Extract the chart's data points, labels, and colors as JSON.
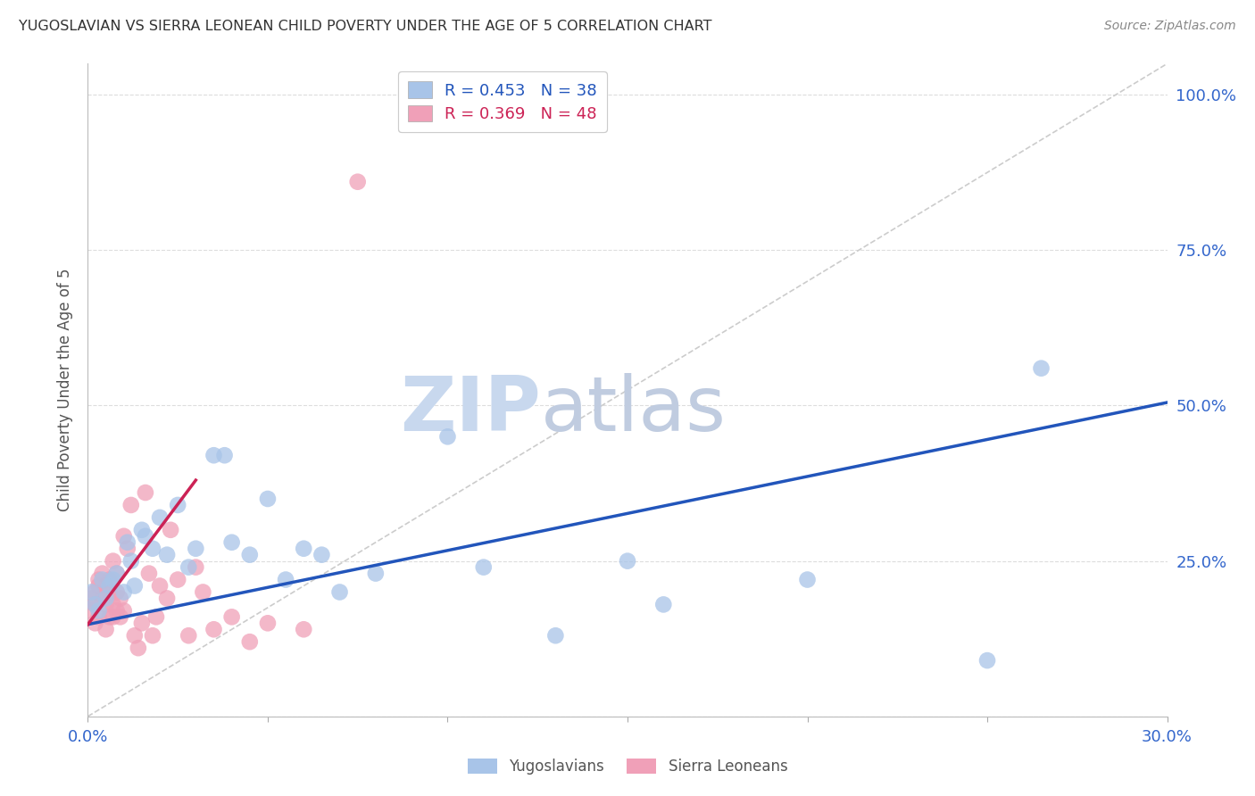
{
  "title": "YUGOSLAVIAN VS SIERRA LEONEAN CHILD POVERTY UNDER THE AGE OF 5 CORRELATION CHART",
  "source": "Source: ZipAtlas.com",
  "ylabel_label": "Child Poverty Under the Age of 5",
  "xlim": [
    0.0,
    0.3
  ],
  "ylim": [
    0.0,
    1.05
  ],
  "blue_R": 0.453,
  "blue_N": 38,
  "pink_R": 0.369,
  "pink_N": 48,
  "blue_color": "#a8c4e8",
  "pink_color": "#f0a0b8",
  "blue_line_color": "#2255bb",
  "pink_line_color": "#cc2255",
  "diagonal_color": "#cccccc",
  "watermark_zip_color": "#c8d8ee",
  "watermark_atlas_color": "#c0cce0",
  "background_color": "#ffffff",
  "grid_color": "#dddddd",
  "title_color": "#333333",
  "axis_label_color": "#555555",
  "tick_label_color": "#3366cc",
  "blue_scatter_x": [
    0.001,
    0.002,
    0.003,
    0.004,
    0.005,
    0.006,
    0.007,
    0.008,
    0.01,
    0.011,
    0.012,
    0.013,
    0.015,
    0.016,
    0.018,
    0.02,
    0.022,
    0.025,
    0.028,
    0.03,
    0.035,
    0.038,
    0.04,
    0.045,
    0.05,
    0.055,
    0.06,
    0.065,
    0.07,
    0.08,
    0.1,
    0.11,
    0.13,
    0.15,
    0.16,
    0.2,
    0.25,
    0.265
  ],
  "blue_scatter_y": [
    0.2,
    0.18,
    0.17,
    0.22,
    0.19,
    0.21,
    0.22,
    0.23,
    0.2,
    0.28,
    0.25,
    0.21,
    0.3,
    0.29,
    0.27,
    0.32,
    0.26,
    0.34,
    0.24,
    0.27,
    0.42,
    0.42,
    0.28,
    0.26,
    0.35,
    0.22,
    0.27,
    0.26,
    0.2,
    0.23,
    0.45,
    0.24,
    0.13,
    0.25,
    0.18,
    0.22,
    0.09,
    0.56
  ],
  "pink_scatter_x": [
    0.001,
    0.001,
    0.002,
    0.002,
    0.002,
    0.003,
    0.003,
    0.003,
    0.004,
    0.004,
    0.005,
    0.005,
    0.005,
    0.006,
    0.006,
    0.006,
    0.007,
    0.007,
    0.007,
    0.008,
    0.008,
    0.008,
    0.009,
    0.009,
    0.01,
    0.01,
    0.011,
    0.012,
    0.013,
    0.014,
    0.015,
    0.016,
    0.017,
    0.018,
    0.019,
    0.02,
    0.022,
    0.023,
    0.025,
    0.028,
    0.03,
    0.032,
    0.035,
    0.04,
    0.045,
    0.05,
    0.06,
    0.075
  ],
  "pink_scatter_y": [
    0.17,
    0.19,
    0.15,
    0.2,
    0.18,
    0.16,
    0.21,
    0.22,
    0.19,
    0.23,
    0.14,
    0.18,
    0.21,
    0.16,
    0.2,
    0.22,
    0.16,
    0.18,
    0.25,
    0.17,
    0.2,
    0.23,
    0.16,
    0.19,
    0.17,
    0.29,
    0.27,
    0.34,
    0.13,
    0.11,
    0.15,
    0.36,
    0.23,
    0.13,
    0.16,
    0.21,
    0.19,
    0.3,
    0.22,
    0.13,
    0.24,
    0.2,
    0.14,
    0.16,
    0.12,
    0.15,
    0.14,
    0.86
  ],
  "blue_line_x": [
    0.0,
    0.3
  ],
  "blue_line_y": [
    0.148,
    0.505
  ],
  "pink_line_x": [
    0.0,
    0.03
  ],
  "pink_line_y": [
    0.148,
    0.38
  ]
}
